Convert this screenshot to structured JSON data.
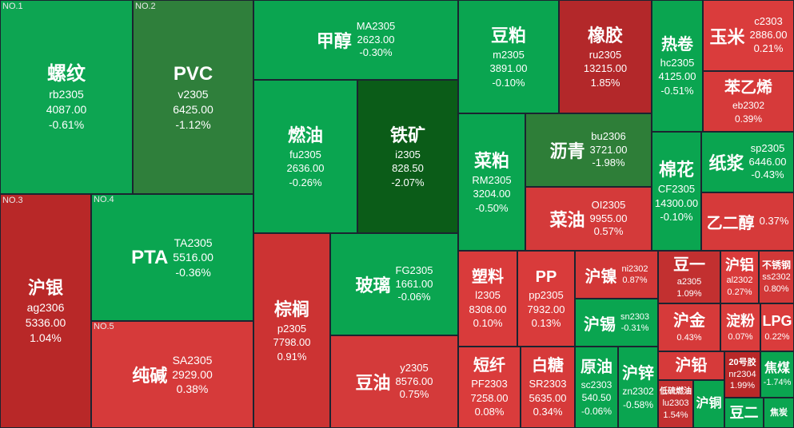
{
  "tiles": [
    {
      "rank": "NO.1",
      "name": "螺纹",
      "code": "rb2305",
      "price": "4087.00",
      "change": "-0.61%",
      "color": "#0da552"
    },
    {
      "rank": "NO.2",
      "name": "PVC",
      "code": "v2305",
      "price": "6425.00",
      "change": "-1.12%",
      "color": "#2f7f3b"
    },
    {
      "name": "甲醇",
      "code": "MA2305",
      "price": "2623.00",
      "change": "-0.30%",
      "color": "#0aa550"
    },
    {
      "name": "豆粕",
      "code": "m2305",
      "price": "3891.00",
      "change": "-0.10%",
      "color": "#0aa550"
    },
    {
      "name": "橡胶",
      "code": "ru2305",
      "price": "13215.00",
      "change": "1.85%",
      "color": "#b3282a"
    },
    {
      "name": "热卷",
      "code": "hc2305",
      "price": "4125.00",
      "change": "-0.51%",
      "color": "#0aa550"
    },
    {
      "name": "玉米",
      "code": "c2303",
      "price": "2886.00",
      "change": "0.21%",
      "color": "#da3c3c"
    },
    {
      "name": "苯乙烯",
      "code": "eb2302",
      "change": "0.39%",
      "color": "#d63a3a"
    },
    {
      "name": "燃油",
      "code": "fu2305",
      "price": "2636.00",
      "change": "-0.26%",
      "color": "#0aa550"
    },
    {
      "name": "铁矿",
      "code": "i2305",
      "price": "828.50",
      "change": "-2.07%",
      "color": "#0b5c18"
    },
    {
      "name": "菜粕",
      "code": "RM2305",
      "price": "3204.00",
      "change": "-0.50%",
      "color": "#0aa550"
    },
    {
      "name": "沥青",
      "code": "bu2306",
      "price": "3721.00",
      "change": "-1.98%",
      "color": "#2e7e38"
    },
    {
      "name": "棉花",
      "code": "CF2305",
      "price": "14300.00",
      "change": "-0.10%",
      "color": "#0aa550"
    },
    {
      "name": "纸浆",
      "code": "sp2305",
      "price": "6446.00",
      "change": "-0.43%",
      "color": "#0aa550"
    },
    {
      "name": "乙二醇",
      "change": "0.37%",
      "color": "#d63a3a"
    },
    {
      "name": "菜油",
      "code": "OI2305",
      "price": "9955.00",
      "change": "0.57%",
      "color": "#d43a3a"
    },
    {
      "rank": "NO.3",
      "name": "沪银",
      "code": "ag2306",
      "price": "5336.00",
      "change": "1.04%",
      "color": "#b82828"
    },
    {
      "rank": "NO.4",
      "name": "PTA",
      "code": "TA2305",
      "price": "5516.00",
      "change": "-0.36%",
      "color": "#0aa550"
    },
    {
      "rank": "NO.5",
      "name": "纯碱",
      "code": "SA2305",
      "price": "2929.00",
      "change": "0.38%",
      "color": "#d63a3a"
    },
    {
      "name": "棕榈",
      "code": "p2305",
      "price": "7798.00",
      "change": "0.91%",
      "color": "#cc3333"
    },
    {
      "name": "玻璃",
      "code": "FG2305",
      "price": "1661.00",
      "change": "-0.06%",
      "color": "#0aa550"
    },
    {
      "name": "豆油",
      "code": "y2305",
      "price": "8576.00",
      "change": "0.75%",
      "color": "#d43a3a"
    },
    {
      "name": "塑料",
      "code": "l2305",
      "price": "8308.00",
      "change": "0.10%",
      "color": "#d93b3b"
    },
    {
      "name": "PP",
      "code": "pp2305",
      "price": "7932.00",
      "change": "0.13%",
      "color": "#d93b3b"
    },
    {
      "name": "沪镍",
      "code": "ni2302",
      "change": "0.87%",
      "color": "#d23838"
    },
    {
      "name": "豆一",
      "code": "a2305",
      "change": "1.09%",
      "color": "#c23030"
    },
    {
      "name": "沪铝",
      "code": "al2302",
      "change": "0.27%",
      "color": "#d93b3b"
    },
    {
      "name": "不锈钢",
      "code": "ss2302",
      "change": "0.80%",
      "color": "#d23838"
    },
    {
      "name": "沪锡",
      "code": "sn2303",
      "change": "-0.31%",
      "color": "#0aa550"
    },
    {
      "name": "沪金",
      "change": "0.43%",
      "color": "#d63a3a"
    },
    {
      "name": "淀粉",
      "change": "0.07%",
      "color": "#da3c3c"
    },
    {
      "name": "LPG",
      "change": "0.22%",
      "color": "#da3c3c"
    },
    {
      "name": "短纤",
      "code": "PF2303",
      "price": "7258.00",
      "change": "0.08%",
      "color": "#da3c3c"
    },
    {
      "name": "白糖",
      "code": "SR2303",
      "price": "5635.00",
      "change": "0.34%",
      "color": "#d63a3a"
    },
    {
      "name": "原油",
      "code": "sc2303",
      "price": "540.50",
      "change": "-0.06%",
      "color": "#0aa550"
    },
    {
      "name": "沪锌",
      "code": "zn2302",
      "change": "-0.58%",
      "color": "#0aa550"
    },
    {
      "name": "沪铅",
      "color": "#d63a3a"
    },
    {
      "name": "20号胶",
      "code": "nr2304",
      "change": "1.99%",
      "color": "#b82828"
    },
    {
      "name": "焦煤",
      "change": "-1.74%",
      "color": "#0aa550"
    },
    {
      "name": "低硫燃油",
      "code": "lu2303",
      "change": "1.54%",
      "color": "#c23030"
    },
    {
      "name": "沪铜",
      "color": "#0aa550"
    },
    {
      "name": "豆二",
      "color": "#0aa550"
    },
    {
      "name": "焦炭",
      "color": "#0aa550"
    }
  ]
}
